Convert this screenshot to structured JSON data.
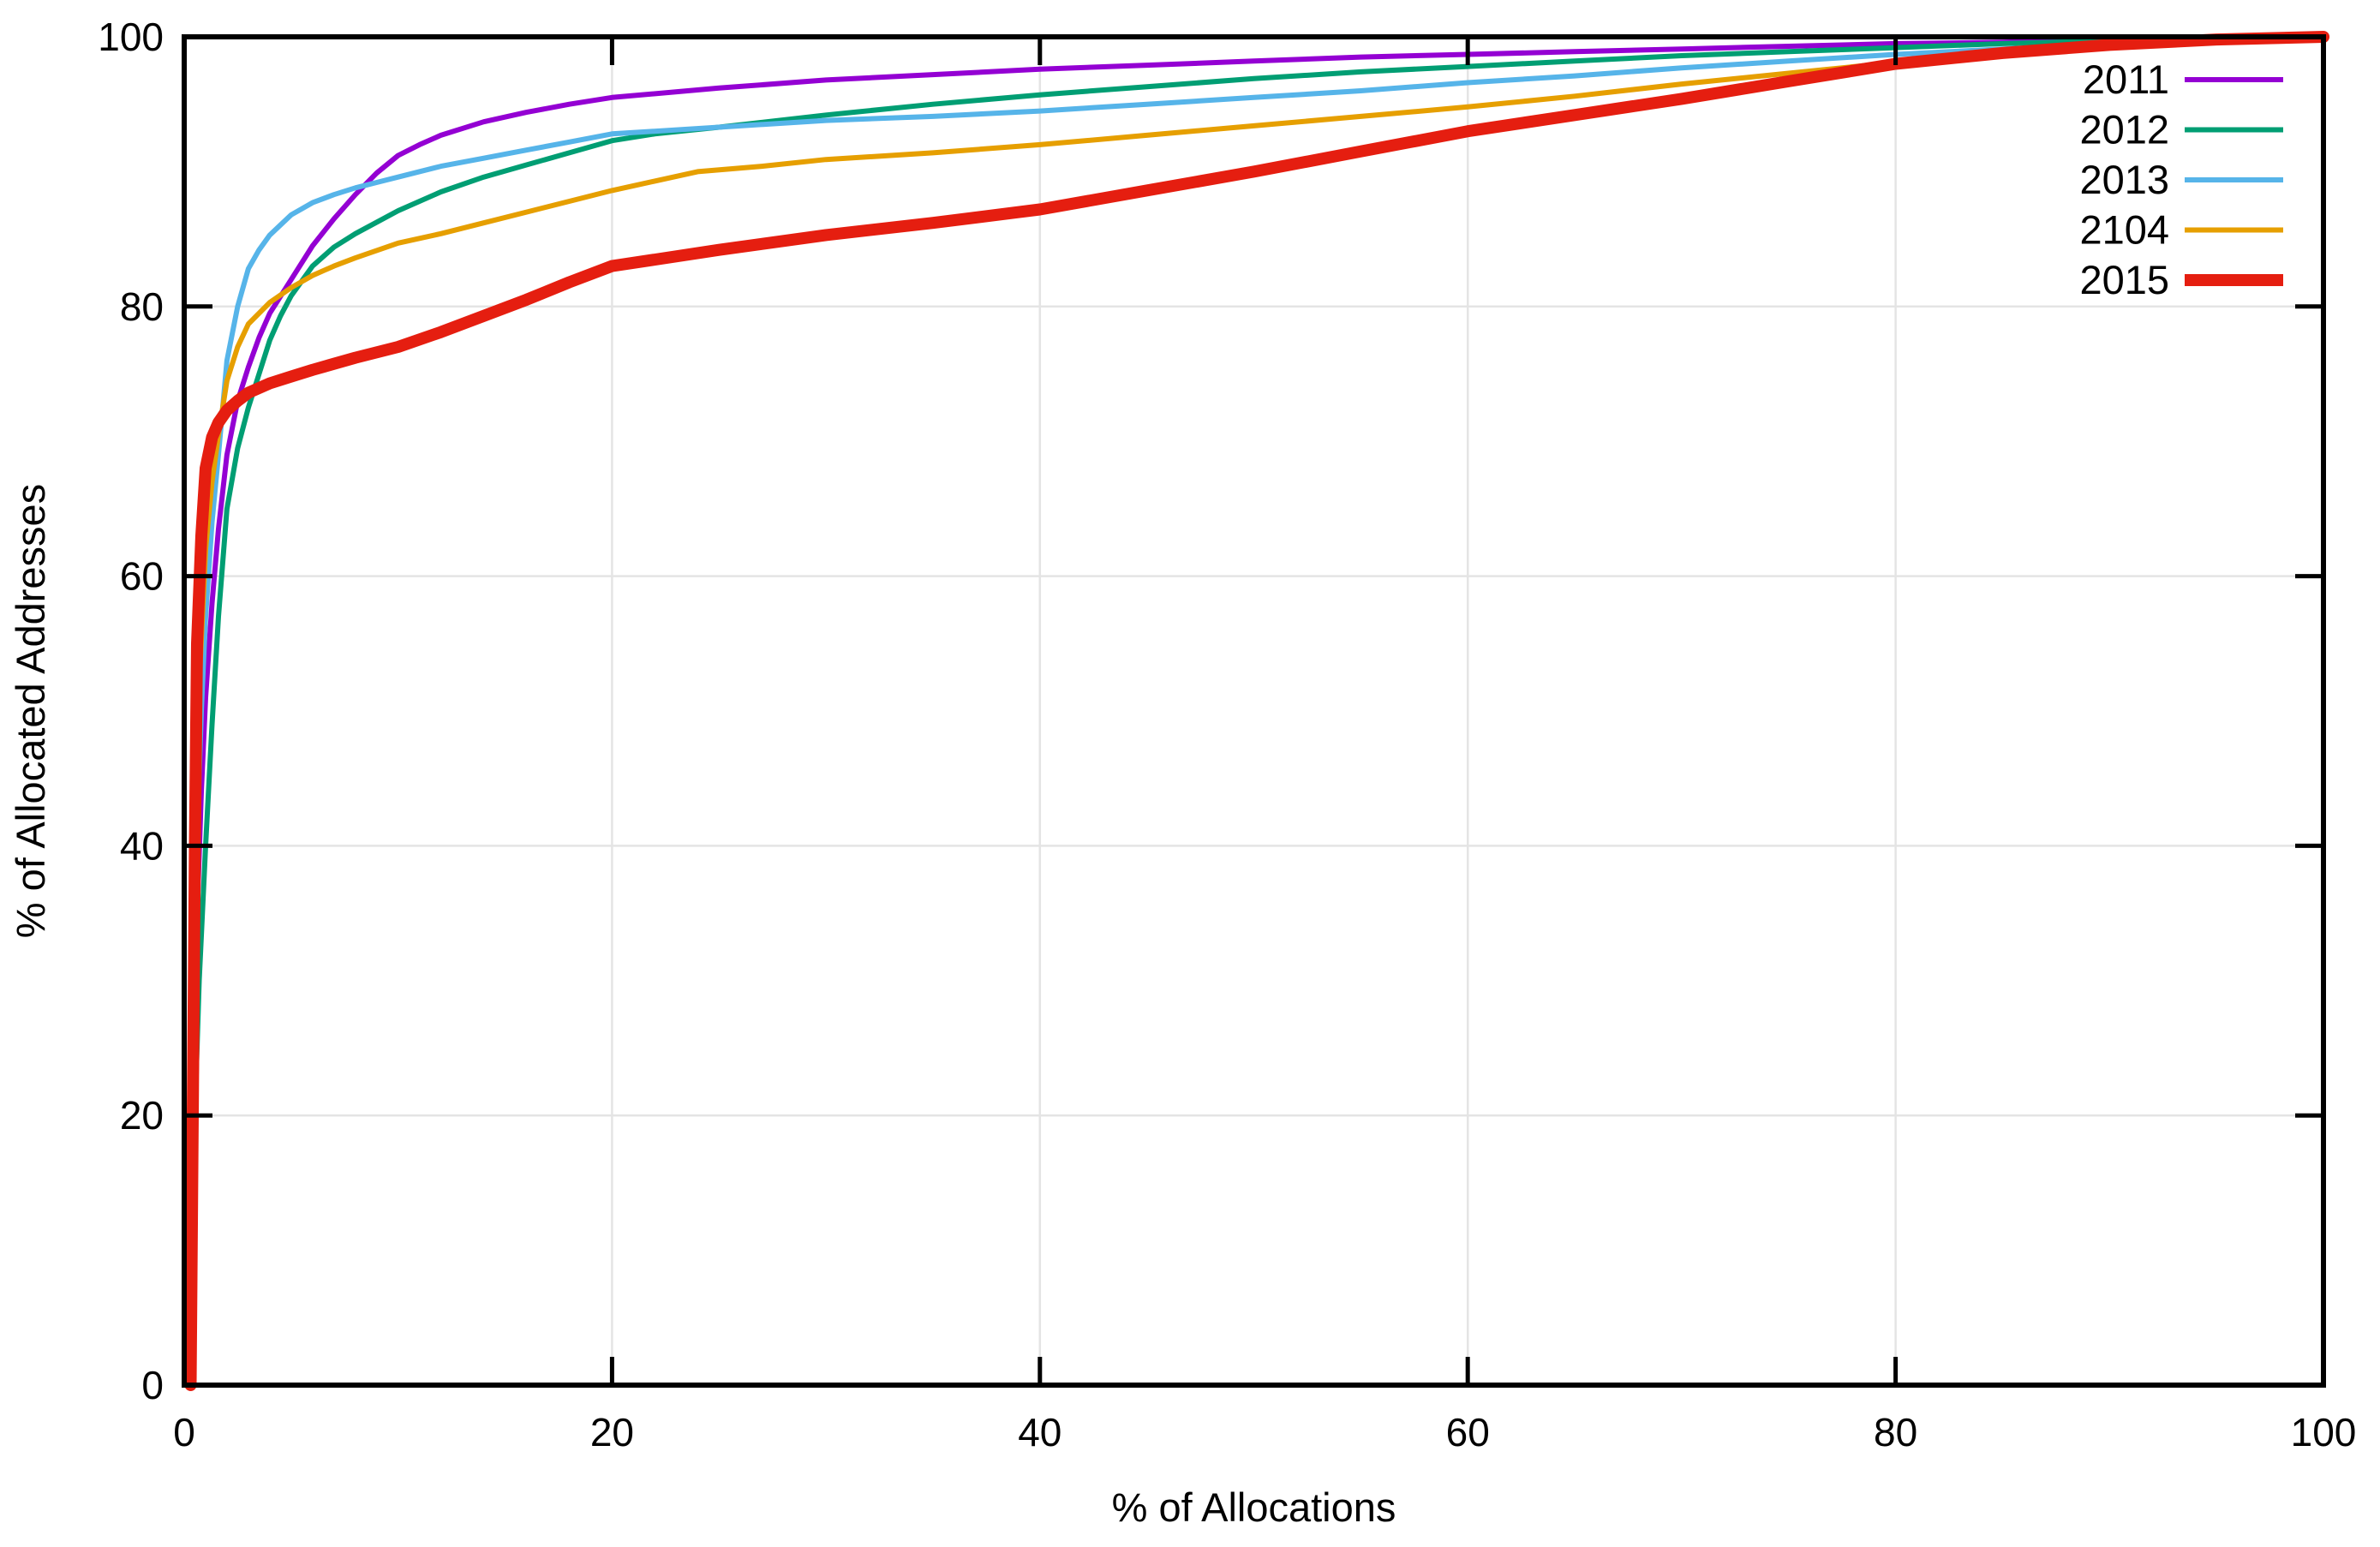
{
  "chart_data": {
    "type": "line",
    "title": "",
    "xlabel": "% of Allocations",
    "ylabel": "% of Allocated Addresses",
    "xlim": [
      0,
      100
    ],
    "ylim": [
      0,
      100
    ],
    "xticks": [
      0,
      20,
      40,
      60,
      80,
      100
    ],
    "yticks": [
      0,
      20,
      40,
      60,
      80,
      100
    ],
    "grid": true,
    "legend_position": "top-right",
    "colors": {
      "background": "#ffffff",
      "frame": "#000000",
      "grid": "#e4e4e4",
      "text": "#000000"
    },
    "series": [
      {
        "name": "2011",
        "color": "#9400d3",
        "width": 6,
        "points": [
          [
            0.15,
            0
          ],
          [
            0.3,
            14
          ],
          [
            0.5,
            30
          ],
          [
            0.8,
            44
          ],
          [
            1,
            51
          ],
          [
            1.3,
            58
          ],
          [
            1.6,
            63.5
          ],
          [
            2,
            69
          ],
          [
            2.5,
            73
          ],
          [
            3,
            75.5
          ],
          [
            3.5,
            77.7
          ],
          [
            4,
            79.5
          ],
          [
            5,
            82
          ],
          [
            6,
            84.5
          ],
          [
            7,
            86.5
          ],
          [
            8,
            88.3
          ],
          [
            9,
            89.9
          ],
          [
            10,
            91.2
          ],
          [
            11,
            92
          ],
          [
            12,
            92.7
          ],
          [
            14,
            93.7
          ],
          [
            16,
            94.4
          ],
          [
            18,
            95
          ],
          [
            20,
            95.5
          ],
          [
            25,
            96.2
          ],
          [
            30,
            96.8
          ],
          [
            35,
            97.2
          ],
          [
            40,
            97.6
          ],
          [
            45,
            97.9
          ],
          [
            50,
            98.2
          ],
          [
            55,
            98.5
          ],
          [
            60,
            98.7
          ],
          [
            65,
            98.9
          ],
          [
            70,
            99.1
          ],
          [
            75,
            99.3
          ],
          [
            80,
            99.5
          ],
          [
            85,
            99.6
          ],
          [
            90,
            99.8
          ],
          [
            95,
            99.9
          ],
          [
            100,
            100
          ]
        ]
      },
      {
        "name": "2012",
        "color": "#009e73",
        "width": 6,
        "points": [
          [
            0.2,
            0
          ],
          [
            0.4,
            15
          ],
          [
            0.7,
            30
          ],
          [
            1,
            40
          ],
          [
            1.3,
            49
          ],
          [
            1.6,
            57
          ],
          [
            2,
            65
          ],
          [
            2.5,
            69.5
          ],
          [
            3,
            72.5
          ],
          [
            3.5,
            75
          ],
          [
            4,
            77.5
          ],
          [
            4.5,
            79.3
          ],
          [
            5,
            80.8
          ],
          [
            6,
            83
          ],
          [
            7,
            84.4
          ],
          [
            8,
            85.4
          ],
          [
            10,
            87.1
          ],
          [
            12,
            88.5
          ],
          [
            14,
            89.6
          ],
          [
            16,
            90.5
          ],
          [
            18,
            91.4
          ],
          [
            20,
            92.3
          ],
          [
            22,
            92.8
          ],
          [
            25,
            93.3
          ],
          [
            30,
            94.2
          ],
          [
            35,
            95
          ],
          [
            40,
            95.7
          ],
          [
            45,
            96.3
          ],
          [
            50,
            96.9
          ],
          [
            55,
            97.4
          ],
          [
            60,
            97.8
          ],
          [
            65,
            98.2
          ],
          [
            70,
            98.6
          ],
          [
            75,
            98.9
          ],
          [
            80,
            99.2
          ],
          [
            85,
            99.5
          ],
          [
            90,
            99.7
          ],
          [
            95,
            99.9
          ],
          [
            100,
            100
          ]
        ]
      },
      {
        "name": "2013",
        "color": "#56b4e9",
        "width": 6,
        "points": [
          [
            0.1,
            0
          ],
          [
            0.3,
            20
          ],
          [
            0.5,
            36
          ],
          [
            0.8,
            50
          ],
          [
            1,
            57
          ],
          [
            1.3,
            64
          ],
          [
            1.6,
            69
          ],
          [
            2,
            76
          ],
          [
            2.5,
            80
          ],
          [
            3,
            82.8
          ],
          [
            3.5,
            84.2
          ],
          [
            4,
            85.3
          ],
          [
            5,
            86.8
          ],
          [
            6,
            87.7
          ],
          [
            7,
            88.3
          ],
          [
            8,
            88.8
          ],
          [
            9,
            89.2
          ],
          [
            10,
            89.6
          ],
          [
            12,
            90.4
          ],
          [
            14,
            91
          ],
          [
            16,
            91.6
          ],
          [
            18,
            92.2
          ],
          [
            20,
            92.8
          ],
          [
            25,
            93.3
          ],
          [
            30,
            93.8
          ],
          [
            35,
            94.1
          ],
          [
            40,
            94.5
          ],
          [
            45,
            95
          ],
          [
            50,
            95.5
          ],
          [
            55,
            96
          ],
          [
            60,
            96.6
          ],
          [
            65,
            97.1
          ],
          [
            70,
            97.7
          ],
          [
            75,
            98.2
          ],
          [
            80,
            98.7
          ],
          [
            85,
            99.1
          ],
          [
            90,
            99.5
          ],
          [
            95,
            99.8
          ],
          [
            100,
            100
          ]
        ]
      },
      {
        "name": "2104",
        "color": "#e69f00",
        "width": 6,
        "points": [
          [
            0.15,
            0
          ],
          [
            0.3,
            20
          ],
          [
            0.5,
            40
          ],
          [
            0.7,
            52
          ],
          [
            1,
            62
          ],
          [
            1.3,
            67
          ],
          [
            1.6,
            70.5
          ],
          [
            2,
            74.5
          ],
          [
            2.5,
            77
          ],
          [
            3,
            78.7
          ],
          [
            4,
            80.3
          ],
          [
            5,
            81.4
          ],
          [
            6,
            82.3
          ],
          [
            7,
            83
          ],
          [
            8,
            83.6
          ],
          [
            10,
            84.7
          ],
          [
            12,
            85.4
          ],
          [
            14,
            86.2
          ],
          [
            16,
            87
          ],
          [
            18,
            87.8
          ],
          [
            20,
            88.6
          ],
          [
            22,
            89.3
          ],
          [
            24,
            90
          ],
          [
            27,
            90.4
          ],
          [
            30,
            90.9
          ],
          [
            35,
            91.4
          ],
          [
            40,
            92
          ],
          [
            45,
            92.7
          ],
          [
            50,
            93.4
          ],
          [
            55,
            94.1
          ],
          [
            60,
            94.8
          ],
          [
            65,
            95.6
          ],
          [
            70,
            96.5
          ],
          [
            75,
            97.3
          ],
          [
            80,
            98.1
          ],
          [
            85,
            98.8
          ],
          [
            90,
            99.3
          ],
          [
            95,
            99.8
          ],
          [
            100,
            100
          ]
        ]
      },
      {
        "name": "2015",
        "color": "#e51e10",
        "width": 14,
        "points": [
          [
            0.3,
            0
          ],
          [
            0.4,
            20
          ],
          [
            0.5,
            40
          ],
          [
            0.6,
            55
          ],
          [
            0.8,
            63
          ],
          [
            1,
            68
          ],
          [
            1.3,
            70.3
          ],
          [
            1.6,
            71.4
          ],
          [
            2,
            72.3
          ],
          [
            2.5,
            73
          ],
          [
            3,
            73.6
          ],
          [
            4,
            74.3
          ],
          [
            5,
            74.8
          ],
          [
            6,
            75.3
          ],
          [
            8,
            76.2
          ],
          [
            10,
            77
          ],
          [
            12,
            78.1
          ],
          [
            14,
            79.3
          ],
          [
            16,
            80.5
          ],
          [
            18,
            81.8
          ],
          [
            20,
            83
          ],
          [
            25,
            84.2
          ],
          [
            30,
            85.3
          ],
          [
            35,
            86.2
          ],
          [
            40,
            87.2
          ],
          [
            45,
            88.6
          ],
          [
            50,
            90
          ],
          [
            55,
            91.5
          ],
          [
            60,
            93
          ],
          [
            65,
            94.2
          ],
          [
            70,
            95.4
          ],
          [
            75,
            96.7
          ],
          [
            80,
            98
          ],
          [
            85,
            98.8
          ],
          [
            90,
            99.4
          ],
          [
            95,
            99.8
          ],
          [
            100,
            100
          ]
        ]
      }
    ]
  }
}
